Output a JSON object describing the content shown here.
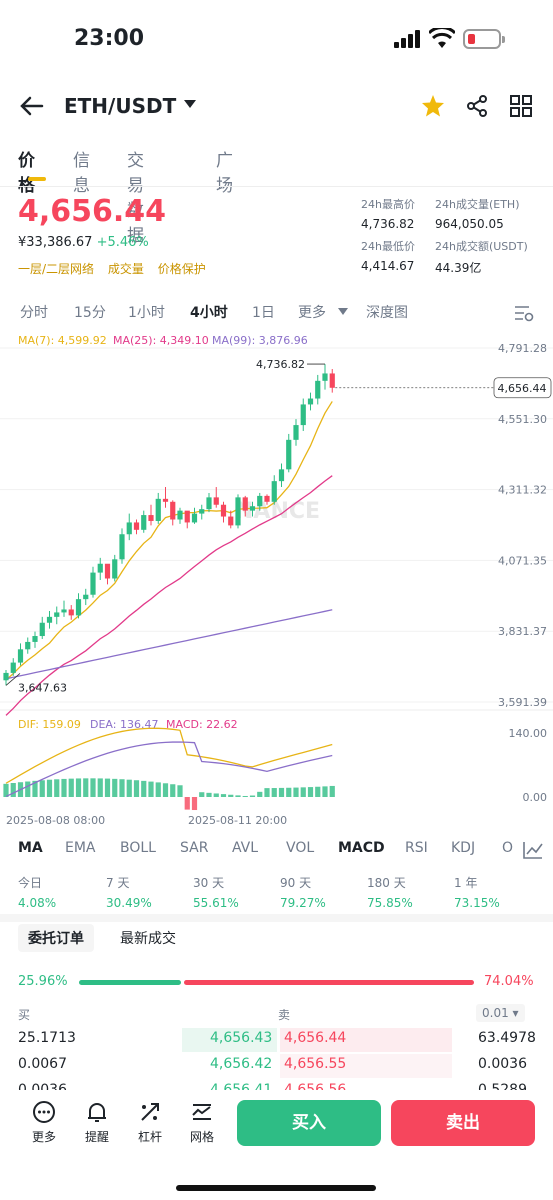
{
  "status": {
    "time": "23:00"
  },
  "header": {
    "pair": "ETH/USDT"
  },
  "tabs": [
    "价格",
    "信息",
    "交易数据",
    "广场"
  ],
  "price": {
    "last": "4,656.44",
    "cny": "¥33,386.67",
    "change": "+5.46%",
    "links": [
      "一层/二层网络",
      "成交量",
      "价格保护"
    ]
  },
  "stats": {
    "high_label": "24h最高价",
    "high": "4,736.82",
    "vol_eth_label": "24h成交量(ETH)",
    "vol_eth": "964,050.05",
    "low_label": "24h最低价",
    "low": "4,414.67",
    "vol_usdt_label": "24h成交额(USDT)",
    "vol_usdt": "44.39亿"
  },
  "intervals": [
    "分时",
    "15分",
    "1小时",
    "4小时",
    "1日",
    "更多",
    "深度图"
  ],
  "chart_labels": {
    "ma7": "MA(7): 4,599.92",
    "ma25": "MA(25): 4,349.10",
    "ma99": "MA(99): 3,876.96",
    "y_ticks": [
      "4,791.28",
      "4,551.30",
      "4,311.32",
      "4,071.35",
      "3,831.37",
      "3,591.39"
    ],
    "high_mark": "4,736.82",
    "low_mark": "3,647.63",
    "current": "4,656.44",
    "watermark": "NANCE",
    "dif": "DIF: 159.09",
    "dea": "DEA: 136.47",
    "macd": "MACD: 22.62",
    "macd_ticks": [
      "140.00",
      "0.00"
    ],
    "x_ticks": [
      "2025-08-08 08:00",
      "2025-08-11 20:00"
    ]
  },
  "chart_data": {
    "type": "candlestick",
    "ylim": [
      3591.39,
      4791.28
    ],
    "ohlc": [
      [
        3665,
        3700,
        3647.63,
        3690
      ],
      [
        3690,
        3740,
        3680,
        3725
      ],
      [
        3725,
        3790,
        3715,
        3770
      ],
      [
        3770,
        3810,
        3755,
        3795
      ],
      [
        3795,
        3830,
        3775,
        3815
      ],
      [
        3815,
        3880,
        3805,
        3860
      ],
      [
        3860,
        3900,
        3840,
        3880
      ],
      [
        3880,
        3915,
        3855,
        3895
      ],
      [
        3895,
        3935,
        3880,
        3905
      ],
      [
        3905,
        3920,
        3870,
        3885
      ],
      [
        3885,
        3960,
        3875,
        3940
      ],
      [
        3940,
        3975,
        3920,
        3955
      ],
      [
        3955,
        4050,
        3945,
        4030
      ],
      [
        4030,
        4080,
        4005,
        4060
      ],
      [
        4060,
        4050,
        3990,
        4010
      ],
      [
        4010,
        4090,
        4000,
        4075
      ],
      [
        4075,
        4180,
        4060,
        4160
      ],
      [
        4160,
        4230,
        4140,
        4200
      ],
      [
        4200,
        4210,
        4160,
        4175
      ],
      [
        4175,
        4240,
        4165,
        4225
      ],
      [
        4225,
        4260,
        4190,
        4205
      ],
      [
        4205,
        4300,
        4195,
        4280
      ],
      [
        4280,
        4320,
        4250,
        4270
      ],
      [
        4270,
        4275,
        4190,
        4210
      ],
      [
        4210,
        4250,
        4195,
        4240
      ],
      [
        4240,
        4235,
        4180,
        4200
      ],
      [
        4200,
        4250,
        4195,
        4230
      ],
      [
        4230,
        4260,
        4210,
        4245
      ],
      [
        4245,
        4300,
        4235,
        4285
      ],
      [
        4285,
        4320,
        4250,
        4260
      ],
      [
        4260,
        4270,
        4200,
        4220
      ],
      [
        4220,
        4240,
        4180,
        4190
      ],
      [
        4190,
        4295,
        4180,
        4285
      ],
      [
        4285,
        4290,
        4220,
        4240
      ],
      [
        4240,
        4270,
        4220,
        4255
      ],
      [
        4255,
        4300,
        4240,
        4290
      ],
      [
        4290,
        4295,
        4260,
        4270
      ],
      [
        4270,
        4360,
        4260,
        4340
      ],
      [
        4340,
        4400,
        4320,
        4380
      ],
      [
        4380,
        4500,
        4370,
        4480
      ],
      [
        4480,
        4550,
        4460,
        4530
      ],
      [
        4530,
        4620,
        4510,
        4600
      ],
      [
        4600,
        4640,
        4580,
        4620
      ],
      [
        4620,
        4700,
        4600,
        4680
      ],
      [
        4680,
        4736.82,
        4650,
        4705
      ],
      [
        4705,
        4720,
        4640,
        4656.44
      ]
    ]
  },
  "indicators": [
    "MA",
    "EMA",
    "BOLL",
    "SAR",
    "AVL",
    "VOL",
    "MACD",
    "RSI",
    "KDJ",
    "O"
  ],
  "performance": [
    {
      "label": "今日",
      "value": "4.08%"
    },
    {
      "label": "7 天",
      "value": "30.49%"
    },
    {
      "label": "30 天",
      "value": "55.61%"
    },
    {
      "label": "90 天",
      "value": "79.27%"
    },
    {
      "label": "180 天",
      "value": "75.85%"
    },
    {
      "label": "1 年",
      "value": "73.15%"
    }
  ],
  "orders": {
    "tabs": [
      "委托订单",
      "最新成交"
    ],
    "buy_ratio": "25.96%",
    "sell_ratio": "74.04%",
    "buy_label": "买",
    "sell_label": "卖",
    "precision": "0.01",
    "rows": [
      {
        "bq": "25.1713",
        "bp": "4,656.43",
        "ap": "4,656.44",
        "aq": "63.4978"
      },
      {
        "bq": "0.0067",
        "bp": "4,656.42",
        "ap": "4,656.55",
        "aq": "0.0036"
      },
      {
        "bq": "0.0036",
        "bp": "4,656.41",
        "ap": "4,656.56",
        "aq": "0.5289"
      }
    ]
  },
  "bottom": {
    "items": [
      "更多",
      "提醒",
      "杠杆",
      "网格"
    ],
    "buy": "买入",
    "sell": "卖出"
  }
}
